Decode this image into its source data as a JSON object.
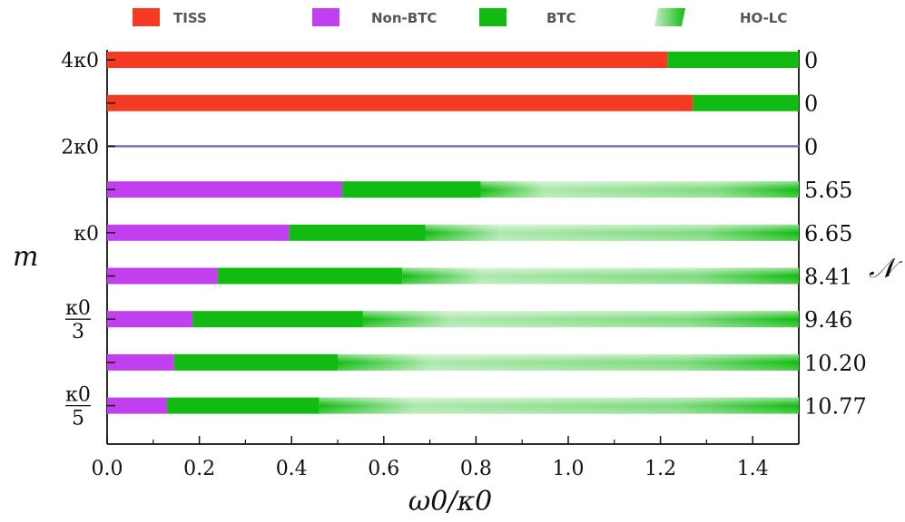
{
  "chart_data": {
    "type": "bar",
    "orientation": "horizontal-stacked",
    "title": "",
    "xlabel": "ω0/κ0",
    "ylabel": "m",
    "right_label": "𝒩",
    "xlim": [
      0,
      1.5
    ],
    "x_ticks": [
      "0.0",
      "0.2",
      "0.4",
      "0.6",
      "0.8",
      "1.0",
      "1.2",
      "1.4"
    ],
    "x_tick_values": [
      0,
      0.2,
      0.4,
      0.6,
      0.8,
      1.0,
      1.2,
      1.4
    ],
    "legend": {
      "placement": "top",
      "entries": [
        {
          "name": "TISS",
          "color": "#f53a22"
        },
        {
          "name": "Non-BTC",
          "color": "#c23ff0"
        },
        {
          "name": "BTC",
          "color": "#11bb11"
        },
        {
          "name": "HO-LC",
          "color": "#11bb11",
          "style": "gradient"
        }
      ]
    },
    "rows": [
      {
        "m_label": "4κ0",
        "n_label": "0",
        "segments": [
          {
            "phase": "TISS",
            "start": 0,
            "end": 1.215
          },
          {
            "phase": "BTC",
            "start": 1.215,
            "end": 1.5
          }
        ]
      },
      {
        "m_label": "",
        "n_label": "0",
        "segments": [
          {
            "phase": "TISS",
            "start": 0,
            "end": 1.27
          },
          {
            "phase": "BTC",
            "start": 1.27,
            "end": 1.5
          }
        ]
      },
      {
        "m_label": "2κ0",
        "n_label": "0",
        "line": true,
        "line_color": "#7777bb",
        "segments": []
      },
      {
        "m_label": "",
        "n_label": "5.65",
        "segments": [
          {
            "phase": "Non-BTC",
            "start": 0,
            "end": 0.51
          },
          {
            "phase": "BTC",
            "start": 0.51,
            "end": 0.81
          },
          {
            "phase": "HO-LC",
            "start": 0.81,
            "end": 1.5
          }
        ]
      },
      {
        "m_label": "κ0",
        "n_label": "6.65",
        "segments": [
          {
            "phase": "Non-BTC",
            "start": 0,
            "end": 0.395
          },
          {
            "phase": "BTC",
            "start": 0.395,
            "end": 0.69
          },
          {
            "phase": "HO-LC",
            "start": 0.69,
            "end": 1.5
          }
        ]
      },
      {
        "m_label": "",
        "n_label": "8.41",
        "segments": [
          {
            "phase": "Non-BTC",
            "start": 0,
            "end": 0.24
          },
          {
            "phase": "BTC",
            "start": 0.24,
            "end": 0.64
          },
          {
            "phase": "HO-LC",
            "start": 0.64,
            "end": 1.5
          }
        ]
      },
      {
        "m_label": "κ0/3",
        "m_num": "κ0",
        "m_den": "3",
        "n_label": "9.46",
        "segments": [
          {
            "phase": "Non-BTC",
            "start": 0,
            "end": 0.185
          },
          {
            "phase": "BTC",
            "start": 0.185,
            "end": 0.555
          },
          {
            "phase": "HO-LC",
            "start": 0.555,
            "end": 1.5
          }
        ]
      },
      {
        "m_label": "",
        "n_label": "10.20",
        "segments": [
          {
            "phase": "Non-BTC",
            "start": 0,
            "end": 0.145
          },
          {
            "phase": "BTC",
            "start": 0.145,
            "end": 0.5
          },
          {
            "phase": "HO-LC",
            "start": 0.5,
            "end": 1.5
          }
        ]
      },
      {
        "m_label": "κ0/5",
        "m_num": "κ0",
        "m_den": "5",
        "n_label": "10.77",
        "segments": [
          {
            "phase": "Non-BTC",
            "start": 0,
            "end": 0.13
          },
          {
            "phase": "BTC",
            "start": 0.13,
            "end": 0.46
          },
          {
            "phase": "HO-LC",
            "start": 0.46,
            "end": 1.5
          }
        ]
      }
    ]
  }
}
